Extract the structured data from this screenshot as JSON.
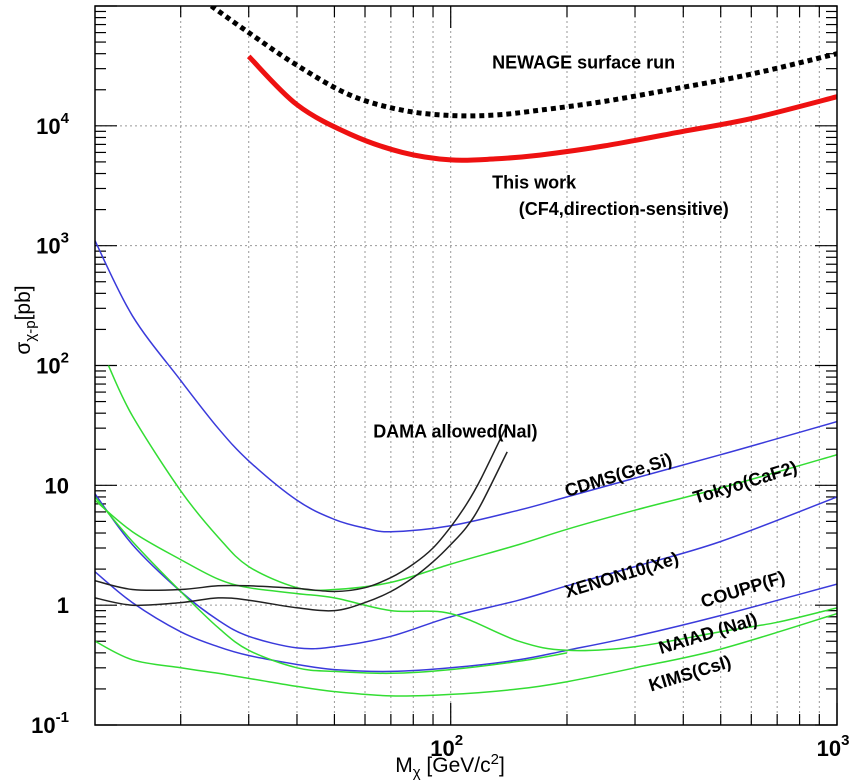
{
  "chart_data": {
    "type": "line",
    "title": "",
    "xlabel": "M",
    "xlabel_sub": "χ",
    "xlabel_unit": " [GeV/c",
    "xlabel_unit_sup": "2",
    "xlabel_unit_end": "]",
    "ylabel": "σ",
    "ylabel_sub": "χ-p",
    "ylabel_unit": "[pb]",
    "xscale": "log",
    "yscale": "log",
    "xlim": [
      12,
      1000
    ],
    "ylim": [
      0.1,
      100000
    ],
    "grid": true,
    "legend": "none",
    "x_ticks": [
      {
        "value": 100,
        "base": "10",
        "exp": "2"
      },
      {
        "value": 1000,
        "base": "10",
        "exp": "3"
      }
    ],
    "y_ticks": [
      {
        "value": 0.1,
        "base": "10",
        "exp": "-1"
      },
      {
        "value": 1,
        "base": "1",
        "exp": ""
      },
      {
        "value": 10,
        "base": "10",
        "exp": ""
      },
      {
        "value": 100,
        "base": "10",
        "exp": "2"
      },
      {
        "value": 1000,
        "base": "10",
        "exp": "3"
      },
      {
        "value": 10000,
        "base": "10",
        "exp": "4"
      }
    ],
    "annotations": [
      {
        "text": "NEWAGE surface run",
        "x": 128,
        "y": 30000,
        "rotate": 0
      },
      {
        "text": "This work",
        "x": 128,
        "y": 3000,
        "rotate": 0
      },
      {
        "text": "(CF4,direction-sensitive)",
        "x": 150,
        "y": 1800,
        "rotate": 0
      },
      {
        "text": "DAMA allowed(NaI)",
        "x": 63,
        "y": 25,
        "rotate": 0
      },
      {
        "text": "CDMS(Ge,Si)",
        "x": 200,
        "y": 8,
        "rotate": -17
      },
      {
        "text": "Tokyo(CaF2)",
        "x": 430,
        "y": 7,
        "rotate": -17
      },
      {
        "text": "XENON10(Xe)",
        "x": 200,
        "y": 1.15,
        "rotate": -17
      },
      {
        "text": "COUPP(F)",
        "x": 450,
        "y": 0.95,
        "rotate": -17
      },
      {
        "text": "NAIAD (NaI)",
        "x": 350,
        "y": 0.39,
        "rotate": -17
      },
      {
        "text": "KIMS(CsI)",
        "x": 330,
        "y": 0.19,
        "rotate": -17
      }
    ],
    "colors": {
      "newage": "#000000",
      "this_work": "#ee1111",
      "blue": "#3a3adb",
      "green": "#33dd33",
      "dama": "#222222"
    },
    "series": [
      {
        "id": "newage",
        "color": "#000000",
        "style": "dotted",
        "width": 5,
        "x": [
          24,
          30,
          40,
          55,
          75,
          100,
          130,
          170,
          250,
          400,
          600,
          1000
        ],
        "y": [
          100000,
          60000,
          32000,
          18000,
          13500,
          12200,
          12300,
          13500,
          16000,
          21000,
          27000,
          40000
        ]
      },
      {
        "id": "this-work",
        "color": "#ee1111",
        "style": "solid",
        "width": 5,
        "x": [
          30,
          40,
          55,
          75,
          100,
          130,
          170,
          250,
          400,
          600,
          1000
        ],
        "y": [
          38000,
          15000,
          8500,
          6000,
          5200,
          5300,
          5700,
          6800,
          9000,
          11500,
          17500
        ]
      },
      {
        "id": "cdms",
        "color": "#3a3adb",
        "style": "solid",
        "width": 1.5,
        "x": [
          12,
          15,
          20,
          25,
          30,
          40,
          50,
          60,
          70,
          100,
          150,
          200,
          300,
          500,
          700,
          1000
        ],
        "y": [
          1100,
          260,
          75,
          30,
          16,
          7.5,
          5.2,
          4.4,
          4.1,
          4.6,
          6.2,
          8,
          11.5,
          18,
          24.5,
          34
        ]
      },
      {
        "id": "xenon10",
        "color": "#3a3adb",
        "style": "solid",
        "width": 1.5,
        "x": [
          12,
          15,
          20,
          25,
          30,
          40,
          50,
          70,
          100,
          150,
          200,
          300,
          500,
          1000
        ],
        "y": [
          8.5,
          3.2,
          1.3,
          0.75,
          0.55,
          0.44,
          0.45,
          0.55,
          0.8,
          1.1,
          1.45,
          2.1,
          3.4,
          8
        ]
      },
      {
        "id": "naiad",
        "color": "#3a3adb",
        "style": "solid",
        "width": 1.5,
        "x": [
          12,
          15,
          20,
          25,
          30,
          40,
          50,
          70,
          100,
          150,
          200,
          300,
          500,
          1000
        ],
        "y": [
          1.9,
          1.05,
          0.6,
          0.45,
          0.38,
          0.32,
          0.29,
          0.28,
          0.3,
          0.35,
          0.42,
          0.55,
          0.82,
          1.5
        ]
      },
      {
        "id": "tokyo",
        "color": "#33dd33",
        "style": "solid",
        "width": 1.5,
        "x": [
          13,
          15,
          20,
          25,
          30,
          40,
          50,
          70,
          100,
          150,
          200,
          300,
          500,
          1000
        ],
        "y": [
          100,
          38,
          9,
          3.7,
          2.1,
          1.4,
          1.35,
          1.55,
          2.2,
          3.2,
          4.3,
          6.2,
          9.5,
          18
        ]
      },
      {
        "id": "coupp",
        "color": "#33dd33",
        "style": "solid",
        "width": 1.5,
        "x": [
          12,
          15,
          20,
          25,
          30,
          40,
          50,
          70,
          100,
          150,
          200,
          300,
          500,
          700,
          1000
        ],
        "y": [
          7.5,
          4.1,
          2.4,
          1.65,
          1.4,
          1.25,
          1.15,
          0.9,
          0.85,
          0.5,
          0.42,
          0.45,
          0.6,
          0.72,
          0.95
        ]
      },
      {
        "id": "kims",
        "color": "#33dd33",
        "style": "solid",
        "width": 1.5,
        "x": [
          12,
          15,
          20,
          25,
          30,
          40,
          50,
          70,
          100,
          150,
          200,
          300,
          500,
          1000
        ],
        "y": [
          0.5,
          0.35,
          0.3,
          0.27,
          0.245,
          0.21,
          0.19,
          0.175,
          0.18,
          0.2,
          0.23,
          0.3,
          0.43,
          0.85
        ]
      },
      {
        "id": "green-steep",
        "color": "#33dd33",
        "style": "solid",
        "width": 1.5,
        "x": [
          12,
          15,
          20,
          25,
          30,
          40,
          50,
          70,
          100,
          150,
          200
        ],
        "y": [
          8,
          3.4,
          1.3,
          0.65,
          0.42,
          0.3,
          0.28,
          0.27,
          0.29,
          0.34,
          0.4
        ]
      },
      {
        "id": "dama-upper",
        "color": "#222222",
        "style": "solid",
        "width": 1.5,
        "x": [
          12,
          15,
          20,
          25,
          30,
          40,
          50,
          60,
          70,
          80,
          90,
          100,
          110,
          120,
          140
        ],
        "y": [
          1.6,
          1.35,
          1.35,
          1.45,
          1.45,
          1.38,
          1.3,
          1.4,
          1.7,
          2.2,
          3,
          4.5,
          7,
          11.5,
          32
        ]
      },
      {
        "id": "dama-lower",
        "color": "#222222",
        "style": "solid",
        "width": 1.5,
        "x": [
          12,
          15,
          20,
          25,
          30,
          40,
          50,
          60,
          70,
          80,
          90,
          100,
          110,
          120,
          140
        ],
        "y": [
          1.15,
          1.0,
          1.05,
          1.15,
          1.1,
          0.95,
          0.9,
          1.05,
          1.3,
          1.7,
          2.3,
          3.2,
          4.5,
          7,
          19
        ]
      }
    ]
  }
}
